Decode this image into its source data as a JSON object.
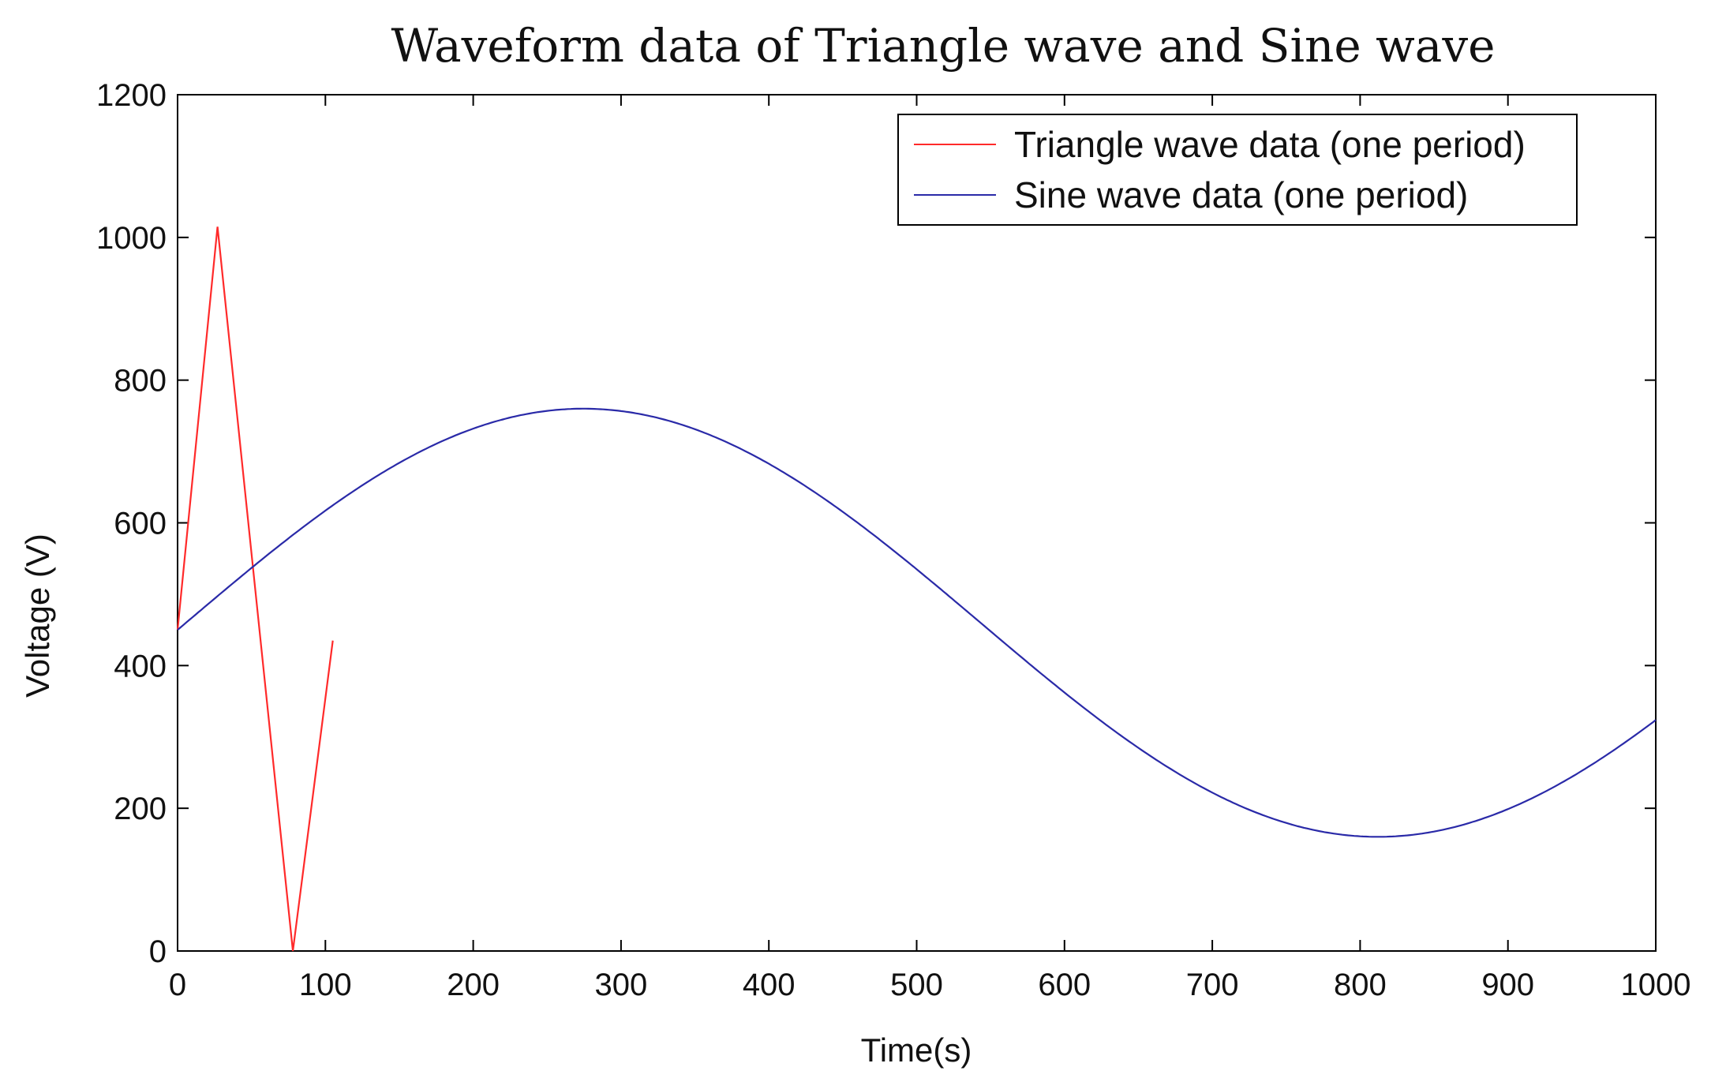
{
  "chart_data": {
    "type": "line",
    "title": "Waveform data of Triangle wave and Sine wave",
    "xlabel": "Time(s)",
    "ylabel": "Voltage (V)",
    "xlim": [
      0,
      1000
    ],
    "ylim": [
      0,
      1200
    ],
    "xticks": [
      0,
      100,
      200,
      300,
      400,
      500,
      600,
      700,
      800,
      900,
      1000
    ],
    "yticks": [
      0,
      200,
      400,
      600,
      800,
      1000,
      1200
    ],
    "grid": false,
    "legend_position": "top-right",
    "series": [
      {
        "name": "Triangle wave data (one period)",
        "color": "#ff2a2a",
        "x": [
          0,
          27,
          78,
          105
        ],
        "y": [
          450,
          1015,
          0,
          435
        ]
      },
      {
        "name": "Sine wave data (one period)",
        "color": "#2a2aa8",
        "function": "sine",
        "offset": 460,
        "amplitude": 300,
        "period": 1075,
        "phase_start_value": 450,
        "x_range": [
          0,
          1000
        ]
      }
    ]
  }
}
